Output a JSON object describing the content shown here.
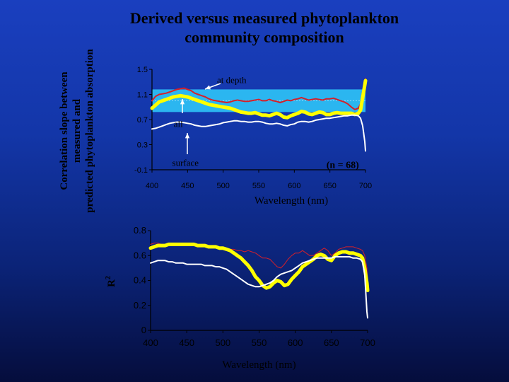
{
  "title_lines": [
    "Derived versus measured phytoplankton",
    "community composition"
  ],
  "chart_data": [
    {
      "type": "line",
      "ylabel_lines": [
        "Correlation slope between",
        "measured and",
        "predicted phytoplankton absorption"
      ],
      "xlabel": "Wavelength (nm)",
      "xlim": [
        400,
        700
      ],
      "ylim": [
        -0.1,
        1.5
      ],
      "xticks": [
        "400",
        "450",
        "500",
        "550",
        "600",
        "650",
        "700"
      ],
      "yticks": [
        "1.5",
        "1.1",
        "0.7",
        "0.3",
        "-0.1"
      ],
      "band": [
        0.82,
        1.18
      ],
      "ref_line": 1.0,
      "annotations": [
        {
          "text": "at depth",
          "x": 512,
          "y": 1.28
        },
        {
          "text": "all",
          "x": 437,
          "y": 0.58
        },
        {
          "text": "surface",
          "x": 447,
          "y": -0.04
        },
        {
          "text": "(n = 68)",
          "x": 668,
          "y": -0.07
        }
      ],
      "series": [
        {
          "color": "#d4202a",
          "width": 2,
          "x": [
            400,
            405,
            410,
            415,
            420,
            425,
            430,
            435,
            440,
            445,
            450,
            455,
            460,
            465,
            470,
            475,
            480,
            485,
            490,
            495,
            500,
            505,
            510,
            515,
            520,
            525,
            530,
            535,
            540,
            545,
            550,
            555,
            560,
            565,
            570,
            575,
            580,
            585,
            590,
            595,
            600,
            605,
            610,
            615,
            620,
            625,
            630,
            635,
            640,
            645,
            650,
            655,
            660,
            665,
            670,
            675,
            680,
            685,
            690,
            693,
            696,
            699,
            700
          ],
          "y": [
            1.0,
            1.07,
            1.1,
            1.11,
            1.12,
            1.14,
            1.16,
            1.18,
            1.19,
            1.2,
            1.18,
            1.16,
            1.12,
            1.1,
            1.08,
            1.06,
            1.03,
            1.01,
            1.0,
            0.99,
            0.98,
            0.97,
            0.98,
            1.0,
            1.01,
            1.0,
            0.99,
            0.99,
            1.0,
            1.01,
            1.02,
            1.0,
            1.0,
            1.02,
            1.0,
            0.99,
            0.97,
            0.99,
            1.01,
            1.0,
            1.02,
            1.03,
            1.05,
            1.03,
            1.01,
            1.02,
            1.03,
            1.02,
            1.01,
            1.03,
            1.03,
            1.04,
            1.02,
            1.0,
            0.98,
            0.95,
            0.9,
            0.86,
            0.88,
            0.95,
            1.15,
            1.3,
            1.35
          ]
        },
        {
          "color": "#ffff00",
          "width": 5,
          "x": [
            400,
            405,
            410,
            415,
            420,
            425,
            430,
            435,
            440,
            445,
            450,
            455,
            460,
            465,
            470,
            475,
            480,
            485,
            490,
            495,
            500,
            505,
            510,
            515,
            520,
            525,
            530,
            535,
            540,
            545,
            550,
            555,
            560,
            565,
            570,
            575,
            580,
            585,
            590,
            595,
            600,
            605,
            610,
            615,
            620,
            625,
            630,
            635,
            640,
            645,
            650,
            655,
            660,
            665,
            670,
            675,
            680,
            685,
            690,
            693,
            696,
            699,
            700
          ],
          "y": [
            0.88,
            0.93,
            0.98,
            1.0,
            1.02,
            1.04,
            1.06,
            1.07,
            1.08,
            1.07,
            1.06,
            1.04,
            1.02,
            1.0,
            0.98,
            0.96,
            0.94,
            0.93,
            0.92,
            0.91,
            0.9,
            0.89,
            0.88,
            0.86,
            0.84,
            0.82,
            0.81,
            0.8,
            0.8,
            0.81,
            0.79,
            0.77,
            0.77,
            0.76,
            0.78,
            0.8,
            0.78,
            0.74,
            0.73,
            0.76,
            0.78,
            0.8,
            0.83,
            0.82,
            0.79,
            0.78,
            0.8,
            0.82,
            0.81,
            0.78,
            0.78,
            0.8,
            0.81,
            0.8,
            0.8,
            0.8,
            0.8,
            0.78,
            0.8,
            0.85,
            1.05,
            1.25,
            1.32
          ]
        },
        {
          "color": "#ffffff",
          "width": 2,
          "x": [
            400,
            405,
            410,
            415,
            420,
            425,
            430,
            435,
            440,
            445,
            450,
            455,
            460,
            465,
            470,
            475,
            480,
            485,
            490,
            495,
            500,
            505,
            510,
            515,
            520,
            525,
            530,
            535,
            540,
            545,
            550,
            555,
            560,
            565,
            570,
            575,
            580,
            585,
            590,
            595,
            600,
            605,
            610,
            615,
            620,
            625,
            630,
            635,
            640,
            645,
            650,
            655,
            660,
            665,
            670,
            675,
            680,
            685,
            690,
            693,
            696,
            699,
            700
          ],
          "y": [
            0.55,
            0.56,
            0.58,
            0.6,
            0.62,
            0.64,
            0.65,
            0.66,
            0.66,
            0.65,
            0.64,
            0.63,
            0.61,
            0.6,
            0.59,
            0.59,
            0.6,
            0.61,
            0.62,
            0.63,
            0.65,
            0.66,
            0.67,
            0.68,
            0.68,
            0.67,
            0.67,
            0.66,
            0.66,
            0.67,
            0.67,
            0.66,
            0.64,
            0.63,
            0.63,
            0.64,
            0.63,
            0.61,
            0.6,
            0.62,
            0.63,
            0.66,
            0.67,
            0.67,
            0.66,
            0.67,
            0.69,
            0.7,
            0.71,
            0.72,
            0.72,
            0.73,
            0.74,
            0.75,
            0.76,
            0.76,
            0.77,
            0.77,
            0.76,
            0.72,
            0.6,
            0.35,
            0.2
          ]
        }
      ]
    },
    {
      "type": "line",
      "ylabel": "R",
      "ylabel_sup": "2",
      "xlabel": "Wavelength (nm)",
      "xlim": [
        400,
        700
      ],
      "ylim": [
        0,
        0.8
      ],
      "xticks": [
        "400",
        "450",
        "500",
        "550",
        "600",
        "650",
        "700"
      ],
      "yticks": [
        "0.8",
        "0.6",
        "0.4",
        "0.2",
        "0"
      ],
      "series": [
        {
          "color": "#d4202a",
          "width": 1,
          "x": [
            400,
            405,
            410,
            415,
            420,
            425,
            430,
            435,
            440,
            445,
            450,
            455,
            460,
            465,
            470,
            475,
            480,
            485,
            490,
            495,
            500,
            505,
            510,
            515,
            520,
            525,
            530,
            535,
            540,
            545,
            550,
            555,
            560,
            565,
            570,
            575,
            580,
            585,
            590,
            595,
            600,
            605,
            610,
            615,
            620,
            625,
            630,
            635,
            640,
            645,
            650,
            655,
            660,
            665,
            670,
            675,
            680,
            685,
            690,
            693,
            696,
            699,
            700
          ],
          "y": [
            0.69,
            0.7,
            0.7,
            0.69,
            0.69,
            0.69,
            0.7,
            0.7,
            0.7,
            0.7,
            0.69,
            0.69,
            0.69,
            0.68,
            0.68,
            0.68,
            0.67,
            0.67,
            0.67,
            0.66,
            0.66,
            0.65,
            0.65,
            0.65,
            0.64,
            0.64,
            0.63,
            0.64,
            0.63,
            0.62,
            0.6,
            0.58,
            0.58,
            0.57,
            0.54,
            0.51,
            0.5,
            0.53,
            0.57,
            0.6,
            0.62,
            0.62,
            0.64,
            0.62,
            0.6,
            0.6,
            0.62,
            0.64,
            0.66,
            0.64,
            0.6,
            0.62,
            0.65,
            0.66,
            0.67,
            0.67,
            0.67,
            0.66,
            0.65,
            0.64,
            0.6,
            0.5,
            0.4
          ]
        },
        {
          "color": "#ffff00",
          "width": 5,
          "x": [
            400,
            405,
            410,
            415,
            420,
            425,
            430,
            435,
            440,
            445,
            450,
            455,
            460,
            465,
            470,
            475,
            480,
            485,
            490,
            495,
            500,
            505,
            510,
            515,
            520,
            525,
            530,
            535,
            540,
            545,
            550,
            555,
            560,
            565,
            570,
            575,
            580,
            585,
            590,
            595,
            600,
            605,
            610,
            615,
            620,
            625,
            630,
            635,
            640,
            645,
            650,
            655,
            660,
            665,
            670,
            675,
            680,
            685,
            690,
            693,
            696,
            699,
            700
          ],
          "y": [
            0.66,
            0.67,
            0.68,
            0.68,
            0.68,
            0.69,
            0.69,
            0.69,
            0.69,
            0.69,
            0.69,
            0.69,
            0.69,
            0.68,
            0.68,
            0.68,
            0.67,
            0.67,
            0.67,
            0.66,
            0.66,
            0.65,
            0.64,
            0.62,
            0.6,
            0.58,
            0.55,
            0.52,
            0.48,
            0.43,
            0.4,
            0.36,
            0.34,
            0.35,
            0.38,
            0.4,
            0.39,
            0.36,
            0.37,
            0.41,
            0.44,
            0.47,
            0.51,
            0.53,
            0.55,
            0.57,
            0.6,
            0.61,
            0.6,
            0.57,
            0.56,
            0.6,
            0.62,
            0.63,
            0.63,
            0.62,
            0.62,
            0.61,
            0.6,
            0.58,
            0.5,
            0.38,
            0.32
          ]
        },
        {
          "color": "#ffffff",
          "width": 2,
          "x": [
            400,
            405,
            410,
            415,
            420,
            425,
            430,
            435,
            440,
            445,
            450,
            455,
            460,
            465,
            470,
            475,
            480,
            485,
            490,
            495,
            500,
            505,
            510,
            515,
            520,
            525,
            530,
            535,
            540,
            545,
            550,
            555,
            560,
            565,
            570,
            575,
            580,
            585,
            590,
            595,
            600,
            605,
            610,
            615,
            620,
            625,
            630,
            635,
            640,
            645,
            650,
            655,
            660,
            665,
            670,
            675,
            680,
            685,
            690,
            693,
            696,
            699,
            700
          ],
          "y": [
            0.54,
            0.55,
            0.56,
            0.56,
            0.56,
            0.55,
            0.55,
            0.54,
            0.54,
            0.54,
            0.53,
            0.53,
            0.53,
            0.53,
            0.53,
            0.52,
            0.52,
            0.52,
            0.51,
            0.51,
            0.5,
            0.49,
            0.47,
            0.45,
            0.43,
            0.41,
            0.39,
            0.37,
            0.36,
            0.35,
            0.35,
            0.36,
            0.37,
            0.38,
            0.4,
            0.43,
            0.45,
            0.46,
            0.47,
            0.48,
            0.5,
            0.52,
            0.54,
            0.55,
            0.56,
            0.57,
            0.58,
            0.58,
            0.58,
            0.58,
            0.58,
            0.59,
            0.59,
            0.59,
            0.59,
            0.59,
            0.58,
            0.58,
            0.57,
            0.55,
            0.45,
            0.15,
            0.1
          ]
        }
      ]
    }
  ]
}
